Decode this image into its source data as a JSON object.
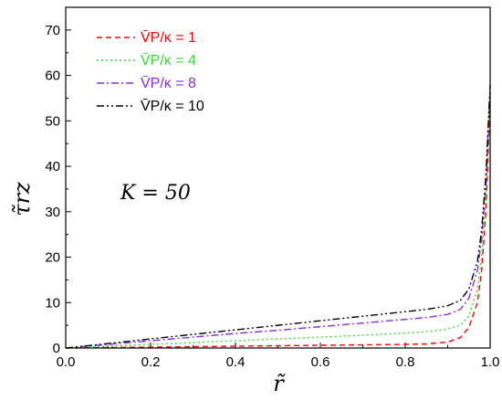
{
  "chart_data": {
    "type": "line",
    "xlabel": "r̃",
    "ylabel": "τ̃rz",
    "xlim": [
      0.0,
      1.0
    ],
    "ylim": [
      0,
      75
    ],
    "x_ticks": [
      "0.0",
      "0.2",
      "0.4",
      "0.6",
      "0.8",
      "1.0"
    ],
    "y_ticks": [
      "0",
      "10",
      "20",
      "30",
      "40",
      "50",
      "60",
      "70"
    ],
    "annotation": "K = 50",
    "legend_position": "top-left",
    "series": [
      {
        "name": "V̄P/κ = 1",
        "color": "#ff0000",
        "dash": "dashed",
        "x": [
          0.0,
          0.1,
          0.2,
          0.3,
          0.4,
          0.5,
          0.6,
          0.7,
          0.8,
          0.85,
          0.9,
          0.93,
          0.95,
          0.97,
          0.98,
          0.99,
          0.995,
          1.0
        ],
        "y": [
          0.0,
          0.1,
          0.2,
          0.3,
          0.4,
          0.5,
          0.6,
          0.7,
          0.8,
          0.9,
          1.3,
          2.3,
          4.5,
          10,
          17,
          30,
          42,
          55
        ]
      },
      {
        "name": "V̄P/κ = 4",
        "color": "#33dd33",
        "dash": "dotted",
        "x": [
          0.0,
          0.1,
          0.2,
          0.3,
          0.4,
          0.5,
          0.6,
          0.7,
          0.8,
          0.85,
          0.9,
          0.93,
          0.95,
          0.97,
          0.98,
          0.99,
          0.995,
          1.0
        ],
        "y": [
          0.0,
          0.4,
          0.8,
          1.2,
          1.6,
          2.0,
          2.4,
          2.8,
          3.3,
          3.6,
          4.2,
          5.0,
          7.0,
          13,
          20,
          33,
          45,
          56
        ]
      },
      {
        "name": "V̄P/κ = 8",
        "color": "#8a2be2",
        "dash": "dashdot",
        "x": [
          0.0,
          0.1,
          0.2,
          0.3,
          0.4,
          0.5,
          0.6,
          0.7,
          0.8,
          0.85,
          0.9,
          0.93,
          0.95,
          0.97,
          0.98,
          0.99,
          0.995,
          1.0
        ],
        "y": [
          0.0,
          0.8,
          1.6,
          2.4,
          3.2,
          3.9,
          4.7,
          5.5,
          6.3,
          6.7,
          7.4,
          8.5,
          11,
          17,
          24,
          36,
          47,
          57
        ]
      },
      {
        "name": "V̄P/κ = 10",
        "color": "#000000",
        "dash": "dashdotdot",
        "x": [
          0.0,
          0.1,
          0.2,
          0.3,
          0.4,
          0.5,
          0.6,
          0.7,
          0.8,
          0.85,
          0.9,
          0.93,
          0.95,
          0.97,
          0.98,
          0.99,
          0.995,
          1.0
        ],
        "y": [
          0.0,
          1.0,
          2.0,
          3.0,
          4.0,
          5.0,
          6.0,
          7.0,
          8.0,
          8.5,
          9.3,
          10.5,
          13,
          19,
          26,
          38,
          48,
          58
        ]
      }
    ]
  }
}
